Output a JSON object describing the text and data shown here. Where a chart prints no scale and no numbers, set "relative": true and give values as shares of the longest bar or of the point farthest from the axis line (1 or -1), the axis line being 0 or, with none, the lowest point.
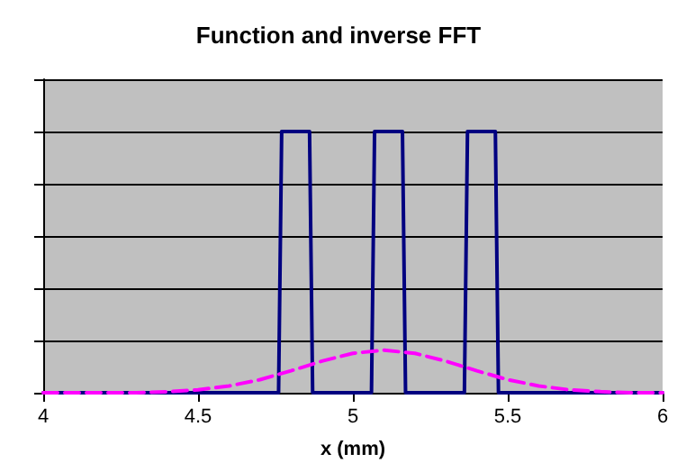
{
  "chart_data": {
    "type": "line",
    "title": "Function and inverse FFT",
    "xlabel": "x (mm)",
    "relative": true,
    "xlim": [
      4,
      6
    ],
    "xticks": [
      4,
      4.5,
      5,
      5.5,
      6
    ],
    "tick_labels": "x",
    "grid": "y",
    "marker": "none",
    "series": [
      {
        "color": "#000080",
        "line_style": "solid",
        "x": [
          4,
          4.76,
          4.77,
          4.86,
          4.87,
          5.06,
          5.07,
          5.16,
          5.17,
          5.36,
          5.37,
          5.46,
          5.47,
          6
        ],
        "values": [
          0,
          0,
          1,
          1,
          0,
          0,
          1,
          1,
          0,
          0,
          1,
          1,
          0,
          0
        ]
      },
      {
        "color": "#ff00ff",
        "line_style": "dashed",
        "x": [
          4,
          4.3,
          4.4,
          4.5,
          4.6,
          4.7,
          4.8,
          4.9,
          5.0,
          5.1,
          5.2,
          5.3,
          5.4,
          5.5,
          5.6,
          5.7,
          5.8,
          5.9,
          6
        ],
        "values": [
          0,
          0,
          0.004,
          0.011,
          0.026,
          0.05,
          0.084,
          0.121,
          0.151,
          0.163,
          0.151,
          0.121,
          0.084,
          0.05,
          0.026,
          0.011,
          0.004,
          0,
          0
        ]
      }
    ]
  }
}
